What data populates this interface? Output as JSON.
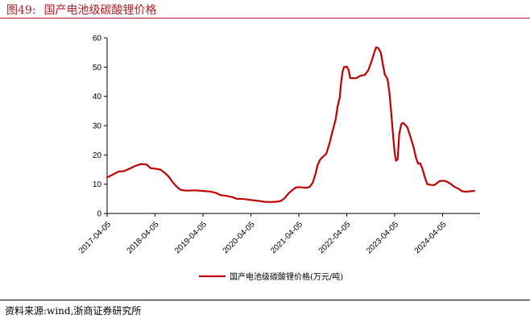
{
  "figure": {
    "label": "图49:",
    "title": "国产电池级碳酸锂价格",
    "source": "资料来源:wind,浙商证券研究所"
  },
  "chart_data": {
    "type": "line",
    "title": "国产电池级碳酸锂价格",
    "xlabel": "",
    "ylabel": "",
    "ylim": [
      0,
      60
    ],
    "yticks": [
      0,
      10,
      20,
      30,
      40,
      50,
      60
    ],
    "xlim": [
      "2017-04-05",
      "2025-01-15"
    ],
    "xticks": [
      "2017-04-05",
      "2018-04-05",
      "2019-04-05",
      "2020-04-05",
      "2021-04-05",
      "2022-04-05",
      "2023-04-05",
      "2024-04-05"
    ],
    "grid": false,
    "legend_position": "bottom-center",
    "series": [
      {
        "name": "国产电池级碳酸锂价格(万元/吨)",
        "color": "#c00000",
        "points": [
          [
            "2017-04-05",
            12.3
          ],
          [
            "2017-05-15",
            13.2
          ],
          [
            "2017-07-01",
            14.3
          ],
          [
            "2017-08-15",
            14.5
          ],
          [
            "2017-10-01",
            15.5
          ],
          [
            "2017-11-15",
            16.4
          ],
          [
            "2017-12-20",
            16.9
          ],
          [
            "2018-02-01",
            16.7
          ],
          [
            "2018-03-01",
            15.5
          ],
          [
            "2018-04-05",
            15.3
          ],
          [
            "2018-05-15",
            15.0
          ],
          [
            "2018-06-15",
            14.0
          ],
          [
            "2018-07-20",
            12.5
          ],
          [
            "2018-08-20",
            10.5
          ],
          [
            "2018-09-20",
            9.0
          ],
          [
            "2018-10-20",
            8.0
          ],
          [
            "2018-12-01",
            7.8
          ],
          [
            "2019-02-01",
            7.9
          ],
          [
            "2019-04-05",
            7.7
          ],
          [
            "2019-06-01",
            7.5
          ],
          [
            "2019-07-15",
            7.0
          ],
          [
            "2019-08-15",
            6.3
          ],
          [
            "2019-10-01",
            6.0
          ],
          [
            "2019-11-15",
            5.6
          ],
          [
            "2019-12-20",
            5.0
          ],
          [
            "2020-02-15",
            4.9
          ],
          [
            "2020-04-05",
            4.6
          ],
          [
            "2020-06-01",
            4.3
          ],
          [
            "2020-07-15",
            4.0
          ],
          [
            "2020-09-01",
            3.9
          ],
          [
            "2020-10-15",
            4.0
          ],
          [
            "2020-11-20",
            4.3
          ],
          [
            "2020-12-20",
            5.3
          ],
          [
            "2021-01-15",
            6.8
          ],
          [
            "2021-02-10",
            7.8
          ],
          [
            "2021-03-10",
            8.8
          ],
          [
            "2021-04-05",
            9.0
          ],
          [
            "2021-05-01",
            8.9
          ],
          [
            "2021-06-01",
            8.8
          ],
          [
            "2021-06-25",
            9.0
          ],
          [
            "2021-07-20",
            10.5
          ],
          [
            "2021-08-10",
            13.5
          ],
          [
            "2021-08-25",
            16.5
          ],
          [
            "2021-09-15",
            18.5
          ],
          [
            "2021-10-10",
            19.5
          ],
          [
            "2021-11-01",
            20.5
          ],
          [
            "2021-11-25",
            24.0
          ],
          [
            "2021-12-20",
            28.5
          ],
          [
            "2022-01-10",
            32.0
          ],
          [
            "2022-01-25",
            36.5
          ],
          [
            "2022-02-10",
            39.5
          ],
          [
            "2022-02-22",
            45.0
          ],
          [
            "2022-03-05",
            48.5
          ],
          [
            "2022-03-15",
            50.0
          ],
          [
            "2022-04-05",
            50.2
          ],
          [
            "2022-04-20",
            49.0
          ],
          [
            "2022-05-01",
            46.3
          ],
          [
            "2022-05-25",
            46.2
          ],
          [
            "2022-06-20",
            46.3
          ],
          [
            "2022-07-15",
            47.0
          ],
          [
            "2022-08-20",
            47.3
          ],
          [
            "2022-09-15",
            48.8
          ],
          [
            "2022-10-15",
            52.5
          ],
          [
            "2022-11-01",
            55.0
          ],
          [
            "2022-11-15",
            56.8
          ],
          [
            "2022-12-01",
            56.5
          ],
          [
            "2022-12-20",
            55.0
          ],
          [
            "2023-01-05",
            51.0
          ],
          [
            "2023-01-20",
            47.5
          ],
          [
            "2023-02-10",
            46.0
          ],
          [
            "2023-02-25",
            41.0
          ],
          [
            "2023-03-10",
            34.5
          ],
          [
            "2023-03-25",
            26.0
          ],
          [
            "2023-04-05",
            21.0
          ],
          [
            "2023-04-15",
            18.0
          ],
          [
            "2023-04-28",
            18.5
          ],
          [
            "2023-05-10",
            27.0
          ],
          [
            "2023-05-25",
            30.5
          ],
          [
            "2023-06-10",
            31.0
          ],
          [
            "2023-06-25",
            30.2
          ],
          [
            "2023-07-10",
            29.5
          ],
          [
            "2023-08-01",
            26.5
          ],
          [
            "2023-08-25",
            23.0
          ],
          [
            "2023-09-15",
            19.0
          ],
          [
            "2023-10-01",
            17.0
          ],
          [
            "2023-10-15",
            17.2
          ],
          [
            "2023-11-01",
            15.5
          ],
          [
            "2023-11-20",
            12.5
          ],
          [
            "2023-12-10",
            10.0
          ],
          [
            "2024-01-01",
            9.8
          ],
          [
            "2024-02-01",
            9.7
          ],
          [
            "2024-02-20",
            10.3
          ],
          [
            "2024-03-10",
            11.0
          ],
          [
            "2024-04-05",
            11.2
          ],
          [
            "2024-05-01",
            11.0
          ],
          [
            "2024-06-01",
            10.2
          ],
          [
            "2024-07-01",
            9.2
          ],
          [
            "2024-08-01",
            8.5
          ],
          [
            "2024-09-01",
            7.6
          ],
          [
            "2024-10-01",
            7.4
          ],
          [
            "2024-11-01",
            7.6
          ],
          [
            "2024-12-01",
            7.7
          ]
        ]
      }
    ]
  }
}
